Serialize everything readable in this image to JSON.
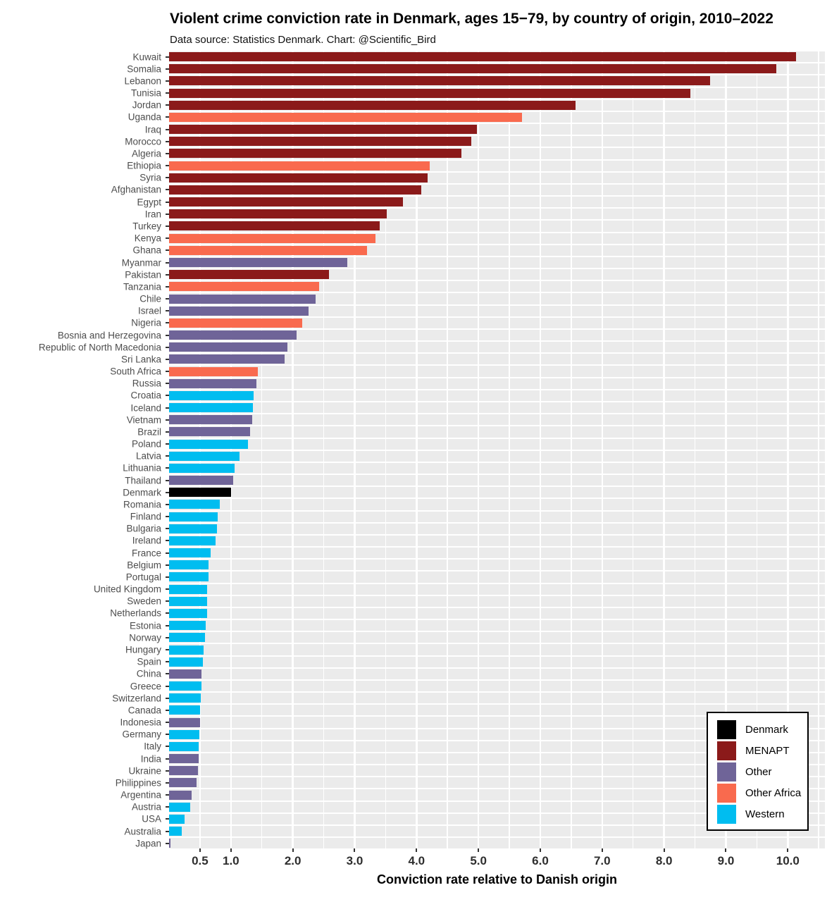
{
  "title": "Violent crime conviction rate in Denmark, ages 15−79, by country of origin, 2010–2022",
  "subtitle": "Data source: Statistics Denmark. Chart: @Scientific_Bird",
  "colors": {
    "Denmark": "#000000",
    "MENAPT": "#8B1A1A",
    "Other": "#6F6498",
    "Other Africa": "#F96A4E",
    "Western": "#00BDF0"
  },
  "panel_background": "#EBEBEB",
  "gridline_color": "#FFFFFF",
  "legend": {
    "items": [
      "Denmark",
      "MENAPT",
      "Other",
      "Other Africa",
      "Western"
    ]
  },
  "chart_data": {
    "type": "bar",
    "orientation": "horizontal",
    "xlabel": "Conviction rate relative to Danish origin",
    "xlim": [
      0,
      10.6
    ],
    "grid": true,
    "legend_position": "inside-bottom-right",
    "x_ticks": [
      {
        "value": 0.5,
        "label": "0.5"
      },
      {
        "value": 1,
        "label": "1.0"
      },
      {
        "value": 2,
        "label": "2.0"
      },
      {
        "value": 3,
        "label": "3.0"
      },
      {
        "value": 4,
        "label": "4.0"
      },
      {
        "value": 5,
        "label": "5.0"
      },
      {
        "value": 6,
        "label": "6.0"
      },
      {
        "value": 7,
        "label": "7.0"
      },
      {
        "value": 8,
        "label": "8.0"
      },
      {
        "value": 9,
        "label": "9.0"
      },
      {
        "value": 10,
        "label": "10.0"
      }
    ],
    "minor_grid_step": 0.5,
    "bars": [
      {
        "country": "Kuwait",
        "group": "MENAPT",
        "value": 10.13
      },
      {
        "country": "Somalia",
        "group": "MENAPT",
        "value": 9.81
      },
      {
        "country": "Lebanon",
        "group": "MENAPT",
        "value": 8.74
      },
      {
        "country": "Tunisia",
        "group": "MENAPT",
        "value": 8.42
      },
      {
        "country": "Jordan",
        "group": "MENAPT",
        "value": 6.57
      },
      {
        "country": "Uganda",
        "group": "Other Africa",
        "value": 5.7
      },
      {
        "country": "Iraq",
        "group": "MENAPT",
        "value": 4.97
      },
      {
        "country": "Morocco",
        "group": "MENAPT",
        "value": 4.89
      },
      {
        "country": "Algeria",
        "group": "MENAPT",
        "value": 4.72
      },
      {
        "country": "Ethiopia",
        "group": "Other Africa",
        "value": 4.21
      },
      {
        "country": "Syria",
        "group": "MENAPT",
        "value": 4.18
      },
      {
        "country": "Afghanistan",
        "group": "MENAPT",
        "value": 4.08
      },
      {
        "country": "Egypt",
        "group": "MENAPT",
        "value": 3.78
      },
      {
        "country": "Iran",
        "group": "MENAPT",
        "value": 3.52
      },
      {
        "country": "Turkey",
        "group": "MENAPT",
        "value": 3.4
      },
      {
        "country": "Kenya",
        "group": "Other Africa",
        "value": 3.34
      },
      {
        "country": "Ghana",
        "group": "Other Africa",
        "value": 3.2
      },
      {
        "country": "Myanmar",
        "group": "Other",
        "value": 2.88
      },
      {
        "country": "Pakistan",
        "group": "MENAPT",
        "value": 2.59
      },
      {
        "country": "Tanzania",
        "group": "Other Africa",
        "value": 2.43
      },
      {
        "country": "Chile",
        "group": "Other",
        "value": 2.37
      },
      {
        "country": "Israel",
        "group": "Other",
        "value": 2.26
      },
      {
        "country": "Nigeria",
        "group": "Other Africa",
        "value": 2.15
      },
      {
        "country": "Bosnia and Herzegovina",
        "group": "Other",
        "value": 2.06
      },
      {
        "country": "Republic of North Macedonia",
        "group": "Other",
        "value": 1.91
      },
      {
        "country": "Sri Lanka",
        "group": "Other",
        "value": 1.87
      },
      {
        "country": "South Africa",
        "group": "Other Africa",
        "value": 1.44
      },
      {
        "country": "Russia",
        "group": "Other",
        "value": 1.41
      },
      {
        "country": "Croatia",
        "group": "Western",
        "value": 1.37
      },
      {
        "country": "Iceland",
        "group": "Western",
        "value": 1.35
      },
      {
        "country": "Vietnam",
        "group": "Other",
        "value": 1.34
      },
      {
        "country": "Brazil",
        "group": "Other",
        "value": 1.31
      },
      {
        "country": "Poland",
        "group": "Western",
        "value": 1.27
      },
      {
        "country": "Latvia",
        "group": "Western",
        "value": 1.14
      },
      {
        "country": "Lithuania",
        "group": "Western",
        "value": 1.06
      },
      {
        "country": "Thailand",
        "group": "Other",
        "value": 1.04
      },
      {
        "country": "Denmark",
        "group": "Denmark",
        "value": 1.0
      },
      {
        "country": "Romania",
        "group": "Western",
        "value": 0.82
      },
      {
        "country": "Finland",
        "group": "Western",
        "value": 0.79
      },
      {
        "country": "Bulgaria",
        "group": "Western",
        "value": 0.77
      },
      {
        "country": "Ireland",
        "group": "Western",
        "value": 0.75
      },
      {
        "country": "France",
        "group": "Western",
        "value": 0.67
      },
      {
        "country": "Belgium",
        "group": "Western",
        "value": 0.64
      },
      {
        "country": "Portugal",
        "group": "Western",
        "value": 0.64
      },
      {
        "country": "United Kingdom",
        "group": "Western",
        "value": 0.62
      },
      {
        "country": "Sweden",
        "group": "Western",
        "value": 0.61
      },
      {
        "country": "Netherlands",
        "group": "Western",
        "value": 0.61
      },
      {
        "country": "Estonia",
        "group": "Western",
        "value": 0.59
      },
      {
        "country": "Norway",
        "group": "Western",
        "value": 0.58
      },
      {
        "country": "Hungary",
        "group": "Western",
        "value": 0.56
      },
      {
        "country": "Spain",
        "group": "Western",
        "value": 0.55
      },
      {
        "country": "China",
        "group": "Other",
        "value": 0.52
      },
      {
        "country": "Greece",
        "group": "Western",
        "value": 0.52
      },
      {
        "country": "Switzerland",
        "group": "Western",
        "value": 0.51
      },
      {
        "country": "Canada",
        "group": "Western",
        "value": 0.5
      },
      {
        "country": "Indonesia",
        "group": "Other",
        "value": 0.5
      },
      {
        "country": "Germany",
        "group": "Western",
        "value": 0.49
      },
      {
        "country": "Italy",
        "group": "Western",
        "value": 0.48
      },
      {
        "country": "India",
        "group": "Other",
        "value": 0.48
      },
      {
        "country": "Ukraine",
        "group": "Other",
        "value": 0.47
      },
      {
        "country": "Philippines",
        "group": "Other",
        "value": 0.44
      },
      {
        "country": "Argentina",
        "group": "Other",
        "value": 0.36
      },
      {
        "country": "Austria",
        "group": "Western",
        "value": 0.34
      },
      {
        "country": "USA",
        "group": "Western",
        "value": 0.25
      },
      {
        "country": "Australia",
        "group": "Western",
        "value": 0.21
      },
      {
        "country": "Japan",
        "group": "Other",
        "value": 0.02
      }
    ]
  }
}
